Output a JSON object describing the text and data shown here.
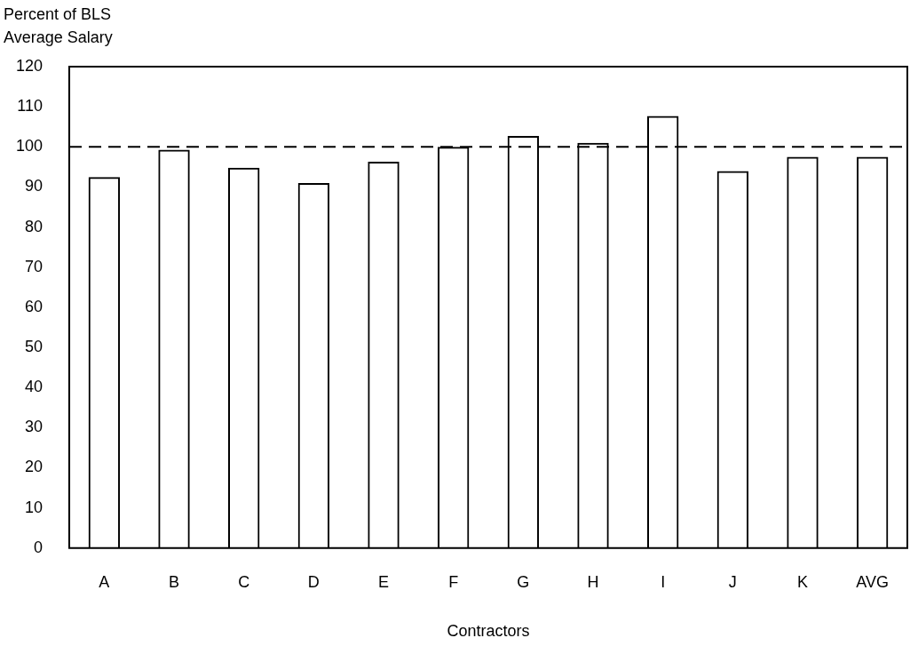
{
  "chart_data": {
    "type": "bar",
    "ylabel": "Percent of BLS\nAverage Salary",
    "xlabel": "Contractors",
    "categories": [
      "A",
      "B",
      "C",
      "D",
      "E",
      "F",
      "G",
      "H",
      "I",
      "J",
      "K",
      "AVG"
    ],
    "values": [
      92.5,
      99.3,
      94.8,
      91,
      96.3,
      100,
      102.7,
      101,
      107.7,
      94,
      97.5,
      97.5
    ],
    "color": "#000000",
    "ylim": [
      0,
      120
    ],
    "yticks": [
      0,
      10,
      20,
      30,
      40,
      50,
      60,
      70,
      80,
      90,
      100,
      110,
      120
    ],
    "grid": false,
    "legend": false,
    "ref_lines": [
      {
        "axis": "y",
        "value": 100,
        "line_style": "dashed",
        "color": "#000000"
      }
    ]
  }
}
